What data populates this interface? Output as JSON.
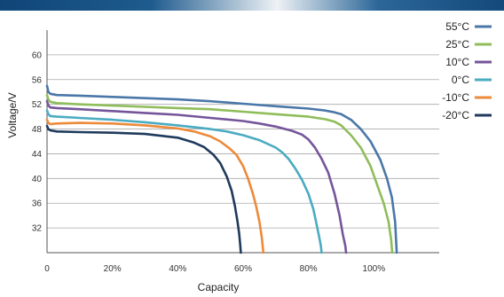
{
  "chart_data": {
    "type": "line",
    "title": "",
    "xlabel": "Capacity",
    "ylabel": "Voltage/V",
    "xlim": [
      0,
      120
    ],
    "ylim": [
      28,
      64
    ],
    "x_ticks": [
      0,
      20,
      40,
      60,
      80,
      100
    ],
    "x_tick_labels": [
      "0",
      "20%",
      "40%",
      "60%",
      "80%",
      "100%"
    ],
    "y_ticks": [
      32,
      36,
      40,
      44,
      48,
      52,
      56,
      60
    ],
    "y_tick_labels": [
      "32",
      "36",
      "40",
      "44",
      "48",
      "52",
      "56",
      "60"
    ],
    "grid": "horizontal",
    "legend_position": "top-right",
    "series": [
      {
        "name": "55°C",
        "color": "#4a77a8",
        "x": [
          0,
          0.4,
          1,
          3,
          10,
          20,
          30,
          40,
          50,
          60,
          70,
          80,
          85,
          88,
          90,
          93,
          96,
          99,
          102,
          104,
          105.5,
          106.5,
          107
        ],
        "y": [
          55,
          54,
          53.7,
          53.5,
          53.4,
          53.2,
          53,
          52.8,
          52.5,
          52.1,
          51.7,
          51.3,
          51,
          50.7,
          50.4,
          49.5,
          48,
          46,
          43,
          40,
          37,
          33,
          28
        ]
      },
      {
        "name": "25°C",
        "color": "#8fbd5a",
        "x": [
          0,
          0.4,
          1,
          3,
          10,
          20,
          30,
          40,
          50,
          60,
          70,
          80,
          85,
          88,
          90,
          93,
          96,
          99,
          101,
          103,
          104.5,
          105.3,
          105.6
        ],
        "y": [
          53.5,
          52.8,
          52.4,
          52.2,
          52,
          51.8,
          51.6,
          51.4,
          51.2,
          50.8,
          50.4,
          50,
          49.6,
          49.2,
          48.6,
          47,
          45,
          42,
          39,
          36,
          33,
          30,
          28
        ]
      },
      {
        "name": "10°C",
        "color": "#75559a",
        "x": [
          0,
          0.4,
          1,
          3,
          10,
          20,
          30,
          40,
          50,
          60,
          65,
          70,
          75,
          78,
          80,
          82,
          84,
          86,
          88,
          89.5,
          90.5,
          91.3,
          91.5
        ],
        "y": [
          52.5,
          51.8,
          51.5,
          51.4,
          51.2,
          50.9,
          50.6,
          50.3,
          49.8,
          49.3,
          48.9,
          48.4,
          47.7,
          47.1,
          46.3,
          45,
          43.2,
          41,
          37.5,
          34,
          31,
          29,
          28
        ]
      },
      {
        "name": "0°C",
        "color": "#4aabc1",
        "x": [
          0,
          0.4,
          1,
          3,
          10,
          20,
          30,
          40,
          50,
          55,
          60,
          65,
          70,
          72,
          74,
          76,
          78,
          80,
          81.5,
          82.5,
          83.3,
          83.8,
          84
        ],
        "y": [
          51,
          50.4,
          50.1,
          50,
          49.8,
          49.5,
          49.1,
          48.6,
          48,
          47.6,
          47,
          46.2,
          45,
          44.2,
          43.1,
          41.6,
          39.8,
          37.5,
          35,
          32.5,
          30.5,
          29,
          28
        ]
      },
      {
        "name": "-10°C",
        "color": "#ec8a3a",
        "x": [
          0,
          0.4,
          1,
          3,
          10,
          20,
          30,
          40,
          45,
          50,
          53,
          56,
          58,
          60,
          61.5,
          63,
          64,
          65,
          65.7,
          66,
          66.2
        ],
        "y": [
          49.5,
          49,
          48.8,
          48.9,
          49,
          48.9,
          48.6,
          48.1,
          47.6,
          46.8,
          46,
          44.8,
          43.8,
          42,
          40,
          37.5,
          35.5,
          33,
          30.5,
          29,
          28
        ]
      },
      {
        "name": "-20°C",
        "color": "#1f3a5c",
        "x": [
          0,
          0.4,
          1,
          3,
          10,
          20,
          30,
          40,
          45,
          48,
          51,
          53,
          55,
          56.5,
          57.5,
          58.3,
          58.8,
          59.1,
          59.3
        ],
        "y": [
          48.5,
          48,
          47.8,
          47.6,
          47.5,
          47.4,
          47.2,
          46.6,
          45.8,
          45.1,
          43.8,
          42.5,
          40.3,
          38,
          35.5,
          33,
          31,
          29.3,
          28
        ]
      }
    ]
  }
}
